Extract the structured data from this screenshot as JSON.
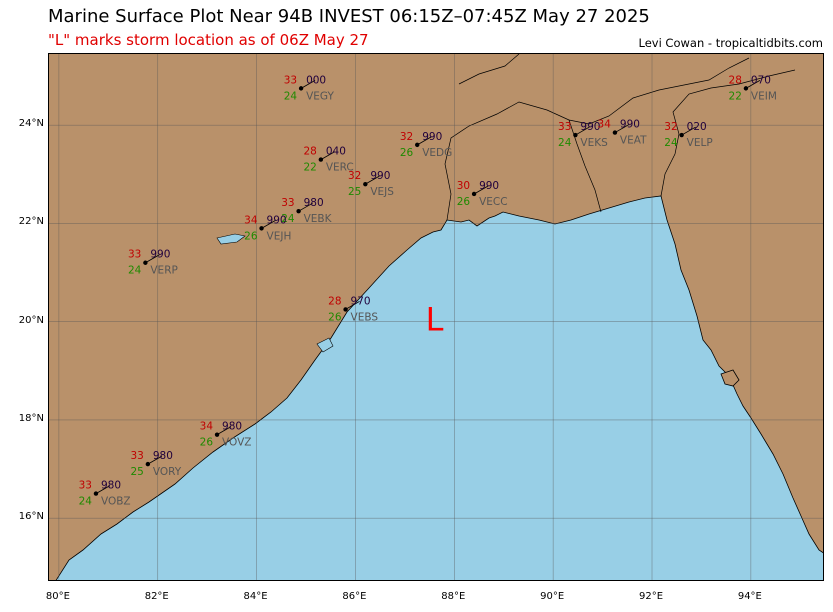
{
  "header": {
    "title": "Marine Surface Plot Near 94B INVEST 06:15Z–07:45Z May 27 2025",
    "subtitle": "\"L\" marks storm location as of 06Z May 27",
    "credit": "Levi Cowan - tropicaltidbits.com"
  },
  "storm_marker": {
    "label": "L",
    "color": "#ff0000",
    "lon": 87.6,
    "lat": 20.0
  },
  "colors": {
    "land": "#b9916a",
    "ocean": "#98cfe6",
    "temperature": "#c00000",
    "dewpoint": "#1f8a00",
    "pressure": "#20003c",
    "station_id": "#555555"
  },
  "axes": {
    "lon_ticks": [
      "80°E",
      "82°E",
      "84°E",
      "86°E",
      "88°E",
      "90°E",
      "92°E",
      "94°E"
    ],
    "lat_ticks": [
      "16°N",
      "18°N",
      "20°N",
      "22°N",
      "24°N"
    ],
    "lon_range": [
      79.8,
      95.5
    ],
    "lat_range": [
      14.7,
      25.45
    ],
    "grid": true
  },
  "stations": [
    {
      "id": "VEGY",
      "temp": "33",
      "dew": "24",
      "pressure": "000",
      "lon": 84.9,
      "lat": 24.75
    },
    {
      "id": "VERC",
      "temp": "28",
      "dew": "22",
      "pressure": "040",
      "lon": 85.3,
      "lat": 23.3
    },
    {
      "id": "VEJS",
      "temp": "32",
      "dew": "25",
      "pressure": "990",
      "lon": 86.2,
      "lat": 22.8
    },
    {
      "id": "VEDG",
      "temp": "32",
      "dew": "26",
      "pressure": "990",
      "lon": 87.25,
      "lat": 23.6
    },
    {
      "id": "VECC",
      "temp": "30",
      "dew": "26",
      "pressure": "990",
      "lon": 88.4,
      "lat": 22.6
    },
    {
      "id": "VEBK",
      "temp": "33",
      "dew": "24",
      "pressure": "980",
      "lon": 84.85,
      "lat": 22.25
    },
    {
      "id": "VEJH",
      "temp": "34",
      "dew": "26",
      "pressure": "990",
      "lon": 84.1,
      "lat": 21.9
    },
    {
      "id": "VERP",
      "temp": "33",
      "dew": "24",
      "pressure": "990",
      "lon": 81.75,
      "lat": 21.2
    },
    {
      "id": "VEBS",
      "temp": "28",
      "dew": "26",
      "pressure": "970",
      "lon": 85.8,
      "lat": 20.25
    },
    {
      "id": "VOVZ",
      "temp": "34",
      "dew": "26",
      "pressure": "980",
      "lon": 83.2,
      "lat": 17.7
    },
    {
      "id": "VORY",
      "temp": "33",
      "dew": "25",
      "pressure": "980",
      "lon": 81.8,
      "lat": 17.1
    },
    {
      "id": "VOBZ",
      "temp": "33",
      "dew": "24",
      "pressure": "980",
      "lon": 80.75,
      "lat": 16.5
    },
    {
      "id": "VEKS",
      "temp": "33",
      "dew": "24",
      "pressure": "990",
      "lon": 90.45,
      "lat": 23.8
    },
    {
      "id": "VEAT",
      "temp": "34",
      "dew": "",
      "pressure": "990",
      "lon": 91.25,
      "lat": 23.85
    },
    {
      "id": "VELP",
      "temp": "32",
      "dew": "24",
      "pressure": "020",
      "lon": 92.6,
      "lat": 23.8
    },
    {
      "id": "VEIM",
      "temp": "28",
      "dew": "22",
      "pressure": "070",
      "lon": 93.9,
      "lat": 24.75
    }
  ]
}
